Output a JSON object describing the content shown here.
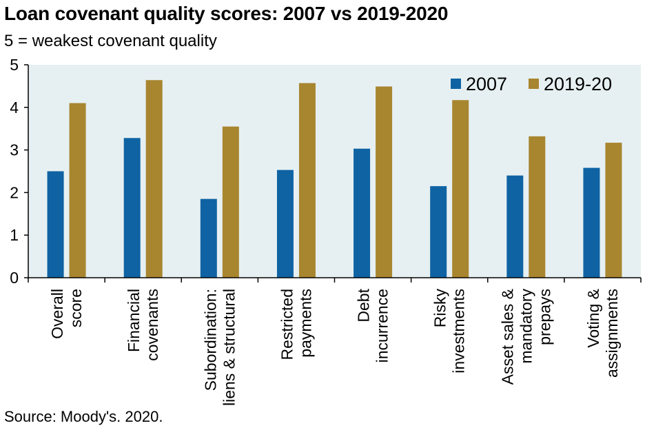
{
  "chart_data": {
    "type": "bar",
    "title": "Loan covenant quality scores: 2007 vs 2019-2020",
    "subtitle": "5 = weakest covenant quality",
    "source": "Source: Moody's. 2020.",
    "categories": [
      [
        "Overall",
        "score"
      ],
      [
        "Financial",
        "covenants"
      ],
      [
        "Subordination:",
        "liens & structural"
      ],
      [
        "Restricted",
        "payments"
      ],
      [
        "Debt",
        "incurrence"
      ],
      [
        "Risky",
        "investments"
      ],
      [
        "Asset sales &",
        "mandatory",
        "prepays"
      ],
      [
        "Voting &",
        "assignments"
      ]
    ],
    "series": [
      {
        "name": "2007",
        "color": "#0f63a3",
        "values": [
          2.5,
          3.28,
          1.85,
          2.53,
          3.03,
          2.15,
          2.4,
          2.58
        ]
      },
      {
        "name": "2019-20",
        "color": "#a8852f",
        "values": [
          4.1,
          4.64,
          3.55,
          4.57,
          4.49,
          4.17,
          3.32,
          3.17
        ]
      }
    ],
    "ylim": [
      0,
      5
    ],
    "yticks": [
      0,
      1,
      2,
      3,
      4,
      5
    ],
    "legend_position": "top-right",
    "plot_background": "#e6f0f2",
    "grid": false
  }
}
